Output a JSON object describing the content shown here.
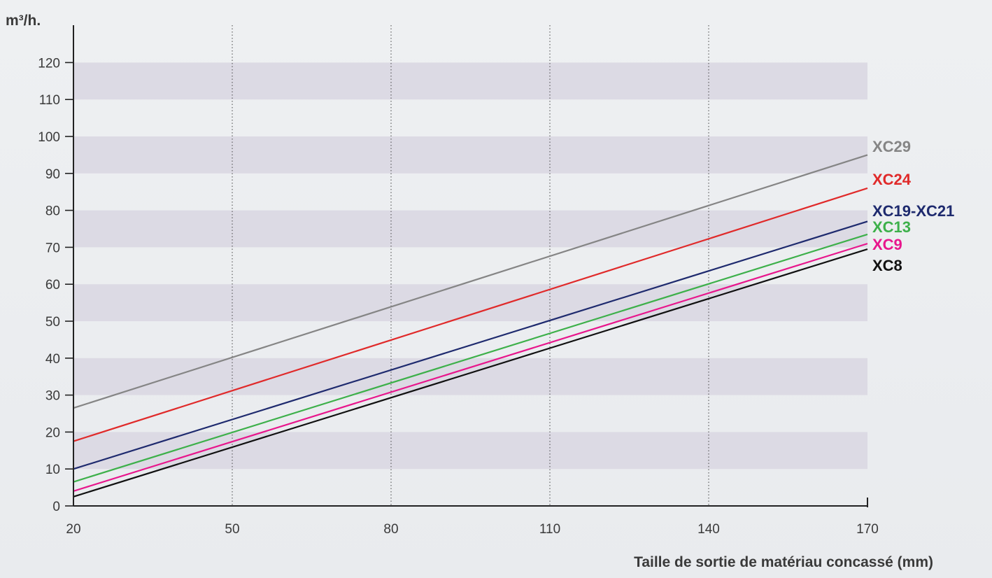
{
  "chart_data": {
    "type": "line",
    "ylabel": "m³/h.",
    "xlabel": "Taille de sortie de matériau concassé (mm)",
    "xlim": [
      20,
      170
    ],
    "ylim": [
      0,
      125
    ],
    "x_ticks": [
      20,
      50,
      80,
      110,
      140,
      170
    ],
    "y_ticks": [
      0,
      10,
      20,
      30,
      40,
      50,
      60,
      70,
      80,
      90,
      100,
      110,
      120
    ],
    "grid": {
      "x_vertical_dotted": true,
      "y_alternating_bands": true
    },
    "legend": "inline-right",
    "series": [
      {
        "name": "XC29",
        "color": "#858585",
        "x": [
          20,
          170
        ],
        "y": [
          26.5,
          95
        ]
      },
      {
        "name": "XC24",
        "color": "#e02a2a",
        "x": [
          20,
          170
        ],
        "y": [
          17.5,
          86
        ]
      },
      {
        "name": "XC19-XC21",
        "color": "#1e2a6e",
        "x": [
          20,
          170
        ],
        "y": [
          10,
          77
        ]
      },
      {
        "name": "XC13",
        "color": "#3db04a",
        "x": [
          20,
          170
        ],
        "y": [
          6.5,
          73.5
        ]
      },
      {
        "name": "XC9",
        "color": "#e8168c",
        "x": [
          20,
          170
        ],
        "y": [
          4,
          71
        ]
      },
      {
        "name": "XC8",
        "color": "#111111",
        "x": [
          20,
          170
        ],
        "y": [
          2.5,
          69.5
        ]
      }
    ]
  }
}
